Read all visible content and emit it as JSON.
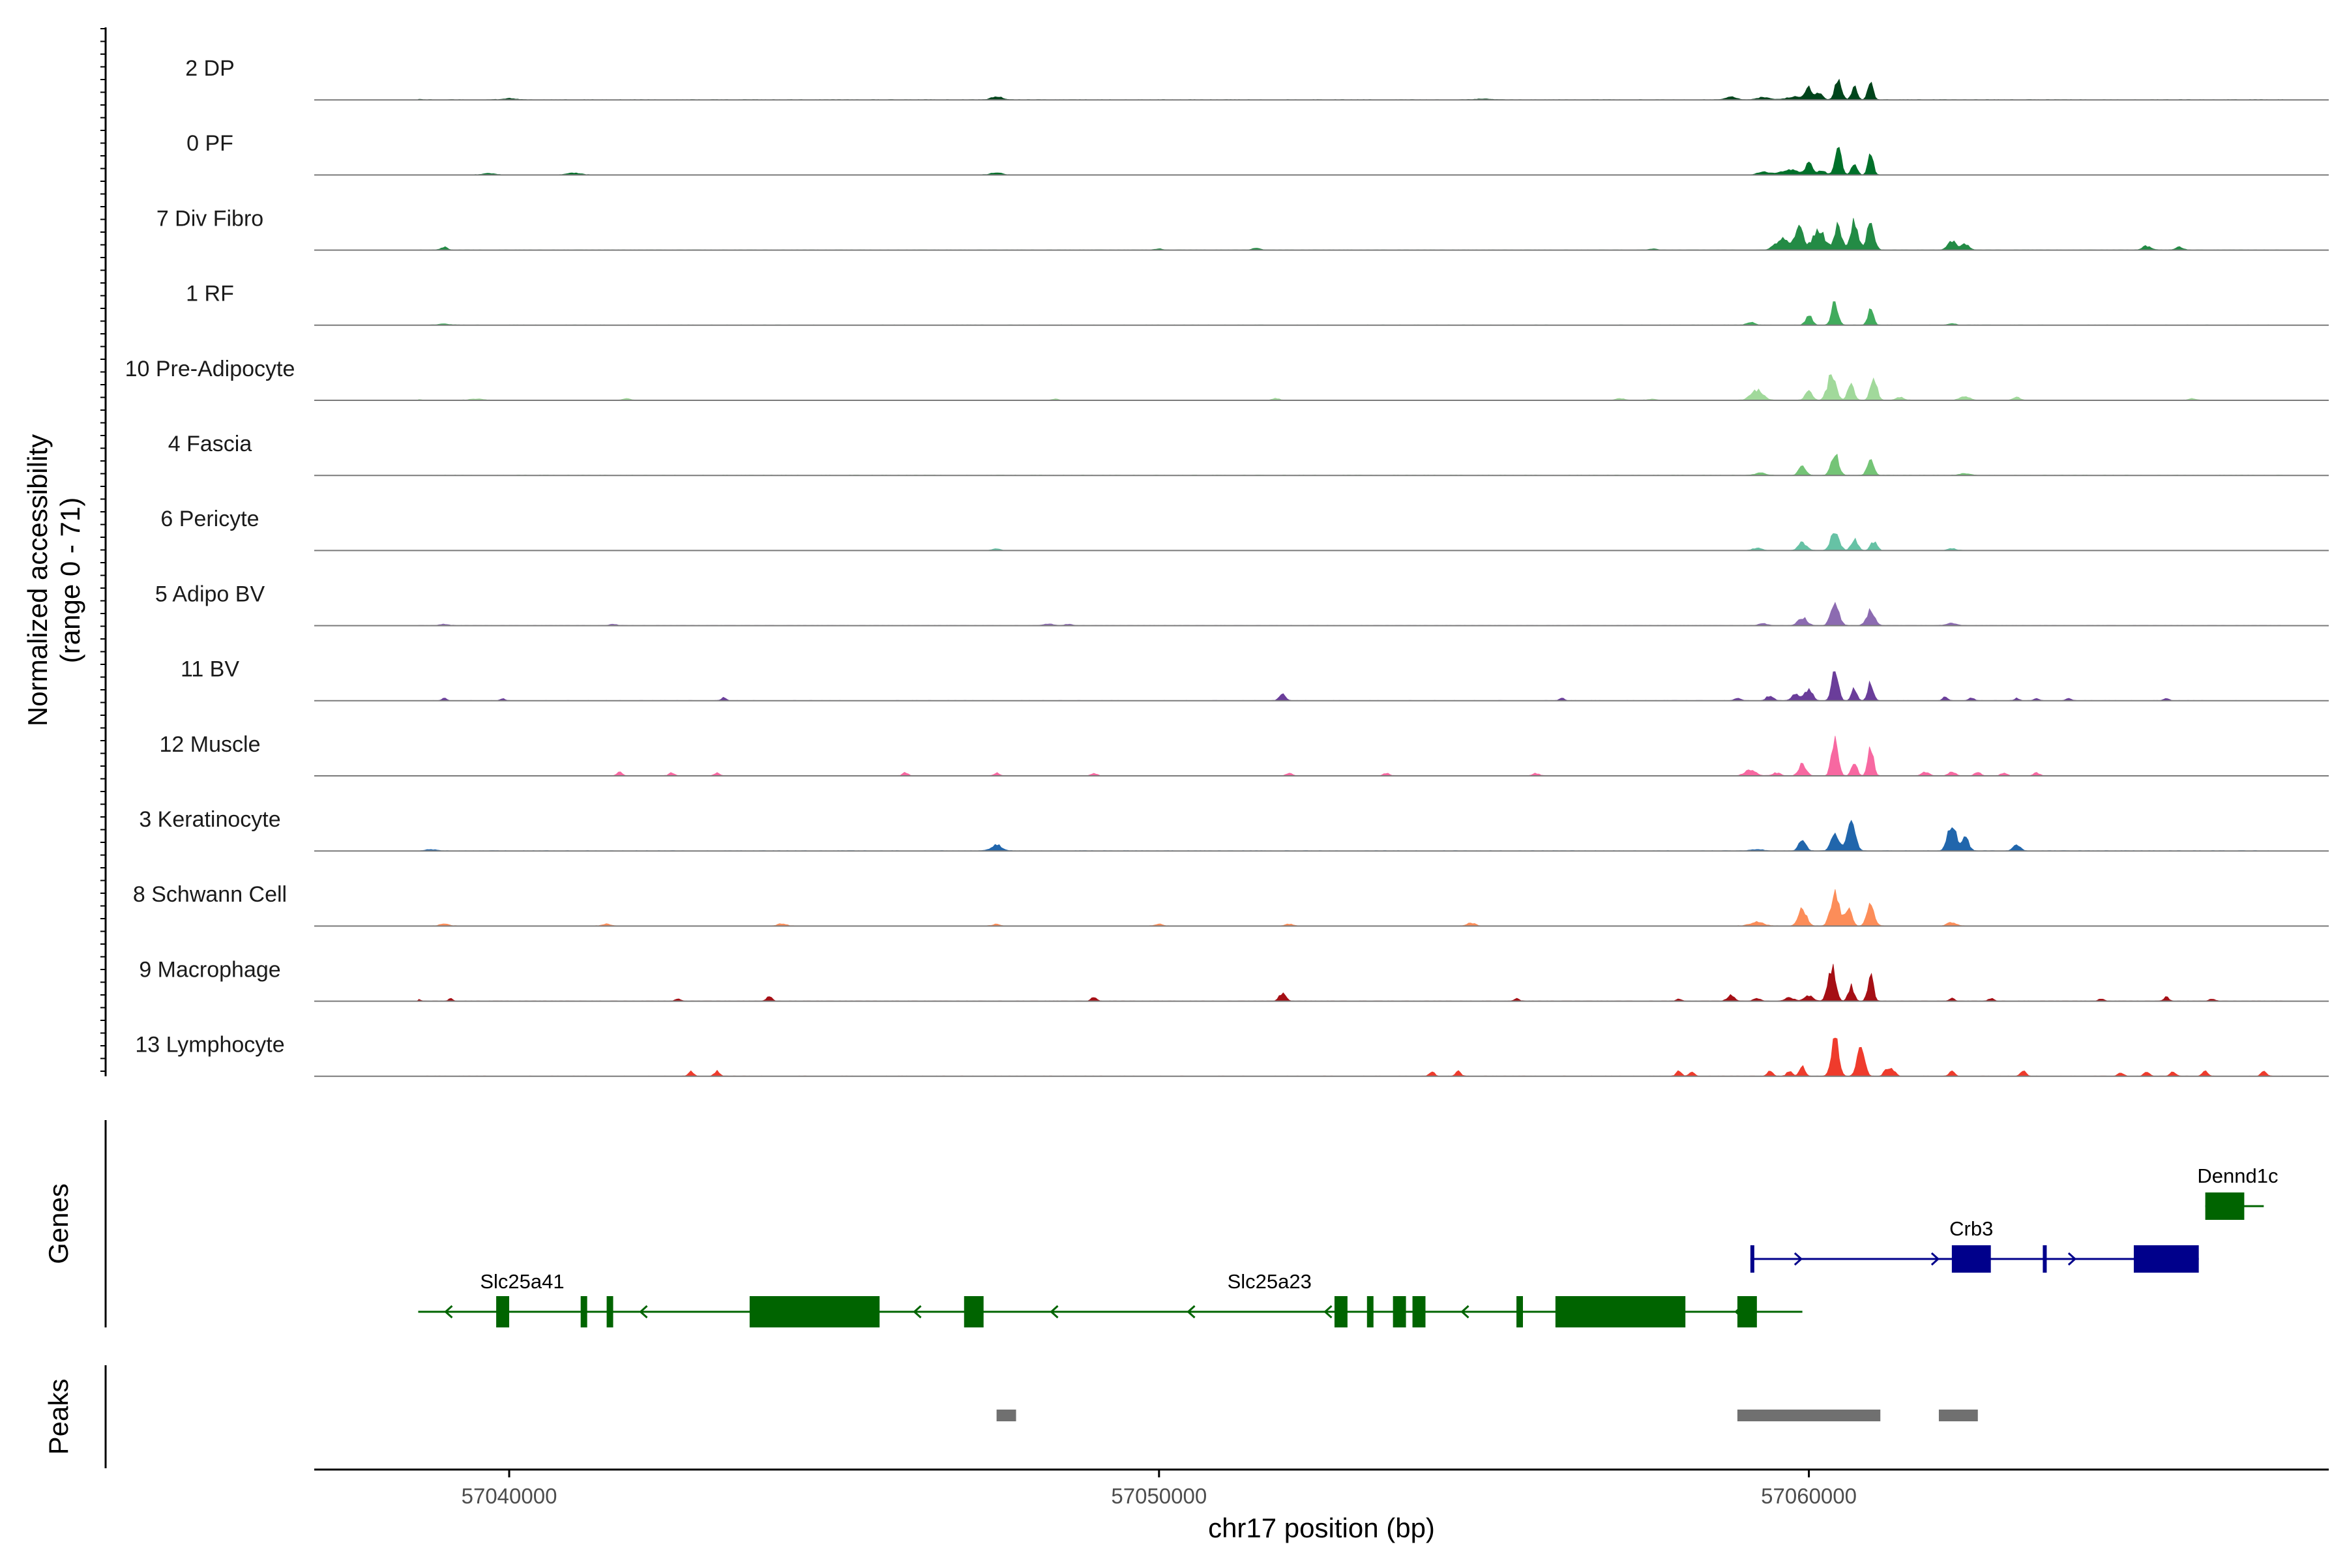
{
  "chart_data": {
    "type": "area",
    "title": "",
    "xlabel": "chr17 position (bp)",
    "ylabel": "Normalized accessibility\n(range 0 - 71)",
    "ylim": [
      0,
      71
    ],
    "xlim": [
      57037000,
      57068000
    ],
    "x_ticks": [
      57040000,
      57050000,
      57060000
    ],
    "x_tick_labels": [
      "57040000",
      "57050000",
      "57060000"
    ],
    "panel_titles": {
      "genes": "Genes",
      "peaks": "Peaks"
    },
    "series": [
      {
        "name": "2 DP",
        "color": "#00441b",
        "profile": "dp",
        "peaks": [
          [
            57038500,
            1.5,
            150
          ],
          [
            57040000,
            1.5,
            150
          ],
          [
            57047500,
            3.5,
            120
          ],
          [
            57055000,
            1,
            200
          ],
          [
            57058800,
            3,
            120
          ],
          [
            57059300,
            2.5,
            150
          ],
          [
            57059800,
            3,
            200
          ],
          [
            57060000,
            11,
            70
          ],
          [
            57060150,
            7,
            80
          ],
          [
            57060450,
            22,
            70
          ],
          [
            57060700,
            13,
            60
          ],
          [
            57060950,
            16,
            60
          ]
        ]
      },
      {
        "name": "0 PF",
        "color": "#00702a",
        "profile": "pf",
        "peaks": [
          [
            57039700,
            1.5,
            150
          ],
          [
            57041000,
            2,
            150
          ],
          [
            57047500,
            2.5,
            120
          ],
          [
            57059300,
            3,
            130
          ],
          [
            57059700,
            5,
            200
          ],
          [
            57060000,
            12,
            70
          ],
          [
            57060200,
            5,
            80
          ],
          [
            57060450,
            26,
            70
          ],
          [
            57060700,
            12,
            60
          ],
          [
            57060950,
            20,
            60
          ]
        ]
      },
      {
        "name": "7 Div Fibro",
        "color": "#238b45",
        "profile": "divfibro",
        "peaks": [
          [
            57039000,
            3,
            70
          ],
          [
            57050000,
            1.5,
            80
          ],
          [
            57051500,
            2,
            90
          ],
          [
            57057600,
            1.5,
            80
          ],
          [
            57059600,
            12,
            150
          ],
          [
            57059850,
            22,
            90
          ],
          [
            57060150,
            20,
            130
          ],
          [
            57060450,
            24,
            80
          ],
          [
            57060700,
            29,
            80
          ],
          [
            57060950,
            26,
            80
          ],
          [
            57062200,
            9,
            90
          ],
          [
            57062400,
            6,
            90
          ],
          [
            57065200,
            4,
            100
          ],
          [
            57065700,
            3,
            90
          ]
        ]
      },
      {
        "name": "1 RF",
        "color": "#41ab5d",
        "profile": "rf",
        "peaks": [
          [
            57039000,
            1.5,
            120
          ],
          [
            57059100,
            3,
            90
          ],
          [
            57060000,
            10,
            70
          ],
          [
            57060400,
            23,
            70
          ],
          [
            57060950,
            16,
            60
          ],
          [
            57062200,
            2,
            80
          ]
        ]
      },
      {
        "name": "10 Pre-Adipocyte",
        "color": "#a1d99b",
        "profile": "preadipo",
        "peaks": [
          [
            57038500,
            2,
            130
          ],
          [
            57039500,
            1.5,
            150
          ],
          [
            57041800,
            2,
            90
          ],
          [
            57048400,
            1.5,
            80
          ],
          [
            57051800,
            2,
            80
          ],
          [
            57057100,
            2,
            100
          ],
          [
            57057600,
            1.5,
            90
          ],
          [
            57059200,
            10,
            130
          ],
          [
            57060000,
            9,
            80
          ],
          [
            57060350,
            25,
            90
          ],
          [
            57060650,
            16,
            70
          ],
          [
            57061000,
            22,
            70
          ],
          [
            57061400,
            3,
            90
          ],
          [
            57062400,
            4,
            110
          ],
          [
            57063200,
            3,
            80
          ],
          [
            57065900,
            2,
            80
          ]
        ]
      },
      {
        "name": "4 Fascia",
        "color": "#74c476",
        "profile": "fascia",
        "peaks": [
          [
            57059250,
            2.5,
            120
          ],
          [
            57059900,
            9,
            80
          ],
          [
            57060400,
            22,
            80
          ],
          [
            57060950,
            17,
            70
          ],
          [
            57062400,
            2,
            120
          ]
        ]
      },
      {
        "name": "6 Pericyte",
        "color": "#66c2a5",
        "profile": "pericyte",
        "peaks": [
          [
            57047500,
            2,
            80
          ],
          [
            57059200,
            2.5,
            100
          ],
          [
            57059900,
            8,
            90
          ],
          [
            57060400,
            19,
            90
          ],
          [
            57060700,
            12,
            70
          ],
          [
            57061000,
            9,
            70
          ],
          [
            57062200,
            2,
            90
          ]
        ]
      },
      {
        "name": "5 Adipo BV",
        "color": "#8c6bb1",
        "profile": "adipobv",
        "peaks": [
          [
            57039000,
            1.5,
            100
          ],
          [
            57041600,
            1.5,
            90
          ],
          [
            57048300,
            2,
            110
          ],
          [
            57048600,
            1.5,
            90
          ],
          [
            57059300,
            2,
            100
          ],
          [
            57059900,
            8,
            100
          ],
          [
            57060400,
            20,
            90
          ],
          [
            57060950,
            15,
            90
          ],
          [
            57062200,
            2.5,
            120
          ]
        ]
      },
      {
        "name": "11 BV",
        "color": "#6a3d9a",
        "profile": "bv",
        "peaks": [
          [
            57039000,
            3,
            50
          ],
          [
            57039900,
            2.5,
            50
          ],
          [
            57043300,
            3,
            60
          ],
          [
            57051900,
            7,
            70
          ],
          [
            57056200,
            2.5,
            60
          ],
          [
            57058900,
            3,
            70
          ],
          [
            57059400,
            5,
            80
          ],
          [
            57059800,
            7,
            90
          ],
          [
            57060000,
            12,
            80
          ],
          [
            57060400,
            33,
            70
          ],
          [
            57060700,
            12,
            60
          ],
          [
            57060950,
            19,
            60
          ],
          [
            57062100,
            4,
            60
          ],
          [
            57062500,
            3,
            60
          ],
          [
            57063200,
            2.5,
            60
          ],
          [
            57063500,
            2.5,
            60
          ],
          [
            57064000,
            2.5,
            60
          ],
          [
            57065500,
            2.5,
            60
          ]
        ]
      },
      {
        "name": "12 Muscle",
        "color": "#f768a1",
        "profile": "muscle",
        "peaks": [
          [
            57041700,
            4,
            60
          ],
          [
            57042500,
            3.5,
            60
          ],
          [
            57043200,
            3,
            60
          ],
          [
            57046100,
            3.5,
            60
          ],
          [
            57047500,
            3,
            60
          ],
          [
            57049000,
            2.5,
            70
          ],
          [
            57052000,
            2.5,
            70
          ],
          [
            57053500,
            2.5,
            70
          ],
          [
            57055800,
            2.5,
            70
          ],
          [
            57059100,
            6,
            120
          ],
          [
            57059500,
            3,
            90
          ],
          [
            57059900,
            12,
            80
          ],
          [
            57060400,
            37,
            70
          ],
          [
            57060700,
            14,
            60
          ],
          [
            57060950,
            27,
            60
          ],
          [
            57061800,
            4,
            80
          ],
          [
            57062200,
            4,
            80
          ],
          [
            57062600,
            3.5,
            70
          ],
          [
            57063000,
            3,
            70
          ],
          [
            57063500,
            3,
            70
          ]
        ]
      },
      {
        "name": "3 Keratinocyte",
        "color": "#2166ac",
        "profile": "kerat",
        "peaks": [
          [
            57038800,
            1.5,
            130
          ],
          [
            57047500,
            6,
            120
          ],
          [
            57059200,
            1.5,
            150
          ],
          [
            57059900,
            10,
            80
          ],
          [
            57060400,
            20,
            80
          ],
          [
            57060650,
            27,
            90
          ],
          [
            57062200,
            26,
            90
          ],
          [
            57062400,
            14,
            80
          ],
          [
            57063200,
            6,
            80
          ]
        ]
      },
      {
        "name": "8 Schwann Cell",
        "color": "#fc8d59",
        "profile": "schwann",
        "peaks": [
          [
            57039000,
            2.5,
            100
          ],
          [
            57041500,
            2,
            100
          ],
          [
            57044200,
            2.5,
            100
          ],
          [
            57047500,
            2,
            80
          ],
          [
            57050000,
            2,
            90
          ],
          [
            57052000,
            2,
            90
          ],
          [
            57054800,
            3,
            100
          ],
          [
            57059200,
            4,
            150
          ],
          [
            57059900,
            17,
            90
          ],
          [
            57060400,
            34,
            90
          ],
          [
            57060600,
            18,
            80
          ],
          [
            57060950,
            23,
            80
          ],
          [
            57062200,
            4,
            100
          ]
        ]
      },
      {
        "name": "9 Macrophage",
        "color": "#a50f15",
        "profile": "macro",
        "peaks": [
          [
            57038600,
            2,
            50
          ],
          [
            57039100,
            2.5,
            50
          ],
          [
            57042600,
            2.5,
            60
          ],
          [
            57044000,
            5,
            60
          ],
          [
            57049000,
            4,
            60
          ],
          [
            57051900,
            8,
            70
          ],
          [
            57055500,
            2.5,
            60
          ],
          [
            57058000,
            2.5,
            60
          ],
          [
            57058800,
            6,
            80
          ],
          [
            57059200,
            3,
            80
          ],
          [
            57059700,
            3.5,
            100
          ],
          [
            57060000,
            5,
            100
          ],
          [
            57060350,
            34,
            80
          ],
          [
            57060650,
            15,
            60
          ],
          [
            57060950,
            27,
            60
          ],
          [
            57062200,
            3,
            60
          ],
          [
            57062800,
            3,
            60
          ],
          [
            57064500,
            2.5,
            60
          ],
          [
            57065500,
            4,
            60
          ],
          [
            57066200,
            2.5,
            60
          ]
        ]
      },
      {
        "name": "13 Lymphocyte",
        "color": "#ef3b2c",
        "profile": "lympho",
        "peaks": [
          [
            57042800,
            5,
            60
          ],
          [
            57043200,
            5,
            60
          ],
          [
            57054200,
            5,
            60
          ],
          [
            57054600,
            5,
            60
          ],
          [
            57058000,
            5,
            60
          ],
          [
            57058200,
            5,
            60
          ],
          [
            57059400,
            5,
            60
          ],
          [
            57059700,
            5,
            60
          ],
          [
            57059900,
            10,
            60
          ],
          [
            57060400,
            40,
            80
          ],
          [
            57060800,
            30,
            80
          ],
          [
            57061200,
            8,
            60
          ],
          [
            57061300,
            6,
            60
          ],
          [
            57062200,
            5,
            60
          ],
          [
            57063300,
            6,
            60
          ],
          [
            57064800,
            4,
            60
          ],
          [
            57065200,
            5,
            60
          ],
          [
            57065600,
            5,
            60
          ],
          [
            57066100,
            6,
            60
          ],
          [
            57067000,
            5,
            60
          ]
        ]
      }
    ],
    "genes": {
      "plus_strand": [
        {
          "name": "Crb3",
          "color": "#00008b",
          "start": 57059100,
          "end": 57066000,
          "exons": [
            [
              57059100,
              57059150
            ],
            [
              57062200,
              57062800
            ],
            [
              57063600,
              57063650
            ],
            [
              57065000,
              57066000
            ]
          ],
          "label_x": 57062500,
          "row": 2
        },
        {
          "name": "Dennd1c",
          "color": "#006400",
          "start": 57066100,
          "end": 57067000,
          "exons": [
            [
              57066100,
              57066700
            ]
          ],
          "label_x": 57066600,
          "row": 3
        }
      ],
      "minus_strand": [
        {
          "name": "Slc25a41",
          "color": "#006400",
          "start": 57038600,
          "end": 57041600,
          "exons": [
            [
              57039800,
              57040000
            ],
            [
              57041100,
              57041200
            ],
            [
              57041500,
              57041600
            ]
          ],
          "label_x": 57040200,
          "row": 1
        },
        {
          "name": "Slc25a23",
          "color": "#006400",
          "start": 57041600,
          "end": 57059900,
          "exons": [
            [
              57043700,
              57045700
            ],
            [
              57047000,
              57047300
            ],
            [
              57052700,
              57052900
            ],
            [
              57053200,
              57053300
            ],
            [
              57053600,
              57053800
            ],
            [
              57053900,
              57054100
            ],
            [
              57055500,
              57055600
            ],
            [
              57056100,
              57058100
            ],
            [
              57058900,
              57059200
            ]
          ],
          "label_x": 57051700,
          "row": 1
        }
      ]
    },
    "peak_regions": [
      [
        57047500,
        57047800
      ],
      [
        57058900,
        57061100
      ],
      [
        57062000,
        57062600
      ]
    ],
    "peak_color": "#707070"
  }
}
